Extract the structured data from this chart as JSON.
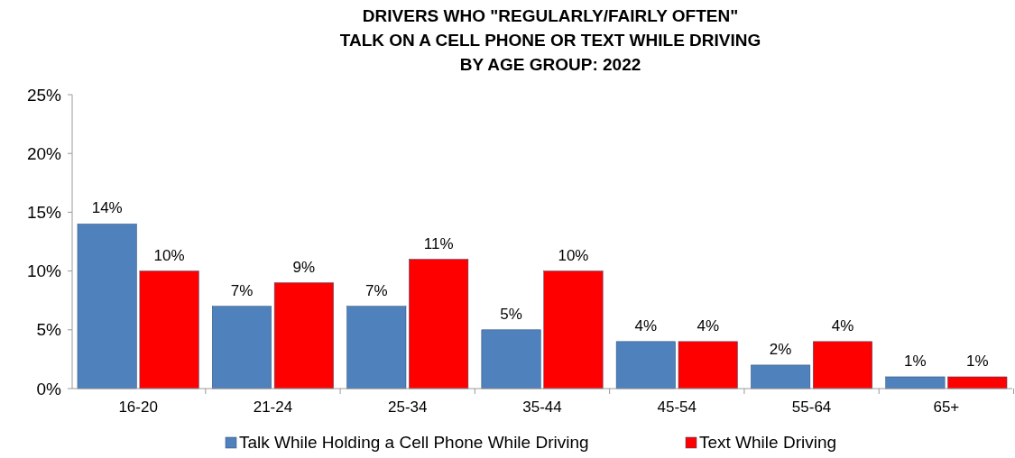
{
  "chart_data": {
    "type": "bar",
    "title": "DRIVERS WHO \"REGULARLY/FAIRLY OFTEN\"\nTALK ON A CELL PHONE OR TEXT WHILE DRIVING\nBY AGE GROUP:  2022",
    "categories": [
      "16-20",
      "21-24",
      "25-34",
      "35-44",
      "45-54",
      "55-64",
      "65+"
    ],
    "series": [
      {
        "name": "Talk While Holding a Cell Phone While Driving",
        "color": "#4f81bd",
        "values": [
          14,
          7,
          7,
          5,
          4,
          2,
          1
        ]
      },
      {
        "name": "Text While Driving",
        "color": "#ff0000",
        "values": [
          10,
          9,
          11,
          10,
          4,
          4,
          1
        ]
      }
    ],
    "ylim": [
      0,
      25
    ],
    "yticks": [
      {
        "value": 0,
        "label": "0%"
      },
      {
        "value": 5,
        "label": "5%"
      },
      {
        "value": 10,
        "label": "10%"
      },
      {
        "value": 15,
        "label": "15%"
      },
      {
        "value": 20,
        "label": "20%"
      },
      {
        "value": 25,
        "label": "25%"
      }
    ],
    "value_labels": [
      [
        "14%",
        "7%",
        "7%",
        "5%",
        "4%",
        "2%",
        "1%"
      ],
      [
        "10%",
        "9%",
        "11%",
        "10%",
        "4%",
        "4%",
        "1%"
      ]
    ],
    "grid": false,
    "legend": "bottom"
  }
}
